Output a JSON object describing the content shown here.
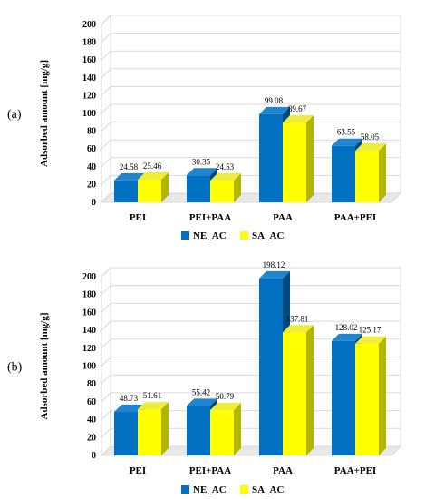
{
  "colors": {
    "ne_front": "#0070C0",
    "ne_side": "#004A80",
    "ne_top": "#1F85D0",
    "sa_front": "#FFFF00",
    "sa_side": "#B5B500",
    "sa_top": "#EDED3A",
    "wall": "#D9D9D9",
    "grid": "#D9D9D9"
  },
  "chart_data": [
    {
      "type": "bar",
      "panel_label": "(a)",
      "ylabel": "Adsorbed amount [mg/g]",
      "ylim": [
        0,
        200
      ],
      "yticks": [
        0,
        20,
        40,
        60,
        80,
        100,
        120,
        140,
        160,
        180,
        200
      ],
      "categories": [
        "PEI",
        "PEI+PAA",
        "PAA",
        "PAA+PEI"
      ],
      "series": [
        {
          "name": "NE_AC",
          "values": [
            24.58,
            30.35,
            99.08,
            63.55
          ],
          "labels": [
            "24.58",
            "30.35",
            "99.08",
            "63.55"
          ]
        },
        {
          "name": "SA_AC",
          "values": [
            25.46,
            24.53,
            89.67,
            58.05
          ],
          "labels": [
            "25.46",
            "24.53",
            "89.67",
            "58.05"
          ]
        }
      ],
      "legend": "bottom"
    },
    {
      "type": "bar",
      "panel_label": "(b)",
      "ylabel": "Adsorbed amount [mg/g]",
      "ylim": [
        0,
        200
      ],
      "yticks": [
        0,
        20,
        40,
        60,
        80,
        100,
        120,
        140,
        160,
        180,
        200
      ],
      "categories": [
        "PEI",
        "PEI+PAA",
        "PAA",
        "PAA+PEI"
      ],
      "series": [
        {
          "name": "NE_AC",
          "values": [
            48.73,
            55.42,
            198.12,
            128.02
          ],
          "labels": [
            "48.73",
            "55.42",
            "198.12",
            "128.02"
          ]
        },
        {
          "name": "SA_AC",
          "values": [
            51.61,
            50.79,
            137.81,
            125.17
          ],
          "labels": [
            "51.61",
            "50.79",
            "137.81",
            "125.17"
          ]
        }
      ],
      "legend": "bottom"
    }
  ]
}
